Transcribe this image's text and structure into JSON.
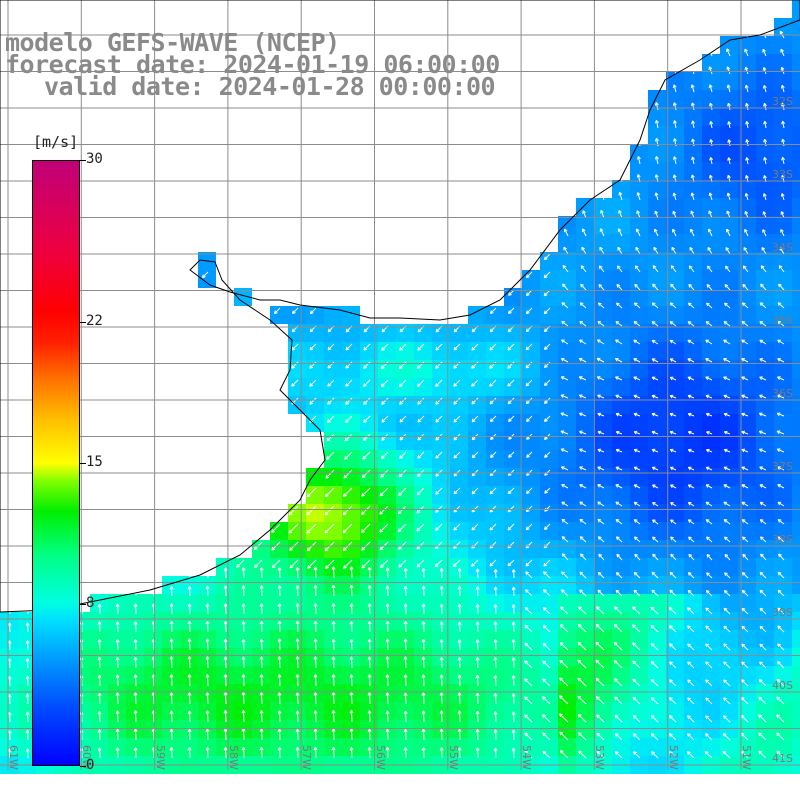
{
  "title": {
    "line1": "modelo GEFS-WAVE (NCEP)",
    "line2": "forecast date: 2024-01-19 06:00:00",
    "line3": "valid date: 2024-01-28 00:00:00"
  },
  "colorbar": {
    "units": "[m/s]",
    "ticks": [
      "30",
      "22",
      "15",
      "8",
      "0"
    ],
    "tick_values": [
      30,
      22,
      15,
      8,
      0
    ],
    "range": [
      0,
      30
    ]
  },
  "lat_labels": [
    "32S",
    "33S",
    "34S",
    "35S",
    "36S",
    "37S",
    "38S",
    "39S",
    "40S",
    "41S"
  ],
  "lon_labels": [
    "61W",
    "60W",
    "59W",
    "58W",
    "57W",
    "56W",
    "55W",
    "54W",
    "53W",
    "52W",
    "51W"
  ],
  "colors": {
    "land": "#ffffff",
    "grid": "#8c8c8c",
    "coast": "#000000",
    "title": "#8a8a8a",
    "arrow": "#ffffff"
  }
}
